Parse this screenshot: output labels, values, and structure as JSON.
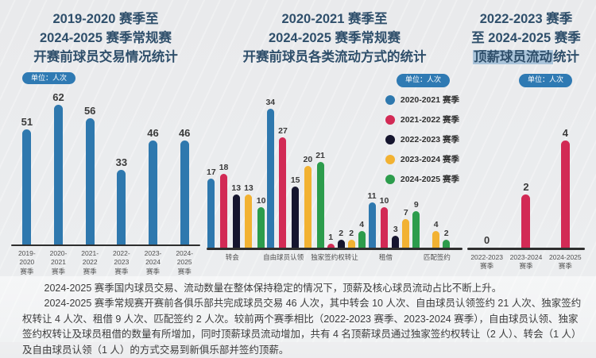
{
  "chart_data": [
    {
      "type": "bar",
      "title": "2019-2020 赛季至 2024-2025 赛季常规赛 开赛前球员交易情况统计",
      "title_lines": [
        "2019-2020 赛季至",
        "2024-2025 赛季常规赛",
        "开赛前球员交易情况统计"
      ],
      "unit": "单位：人次",
      "unit_align": "left",
      "categories": [
        "2019-2020 赛季",
        "2020-2021 赛季",
        "2021-2022 赛季",
        "2022-2023 赛季",
        "2023-2024 赛季",
        "2024-2025 赛季"
      ],
      "values": [
        51,
        62,
        56,
        33,
        46,
        46
      ],
      "bar_color": "#2e78ae",
      "ylim": [
        0,
        65
      ],
      "grid": false
    },
    {
      "type": "grouped-bar",
      "title": "2020-2021 赛季至 2024-2025 赛季常规赛 开赛前球员各类流动方式的统计",
      "title_lines": [
        "2020-2021 赛季至",
        "2024-2025 赛季常规赛",
        "开赛前球员各类流动方式的统计"
      ],
      "unit": "单位：人次",
      "unit_align": "right",
      "categories": [
        "转会",
        "自由球员认领",
        "独家签约权转让",
        "租借",
        "匹配签约"
      ],
      "series": [
        {
          "name": "2020-2021 赛季",
          "color": "#2e78ae",
          "values": [
            17,
            34,
            null,
            11,
            null
          ]
        },
        {
          "name": "2021-2022 赛季",
          "color": "#d22a55",
          "values": [
            18,
            27,
            1,
            10,
            null
          ]
        },
        {
          "name": "2022-2023 赛季",
          "color": "#15152e",
          "values": [
            13,
            15,
            2,
            3,
            null
          ]
        },
        {
          "name": "2023-2024 赛季",
          "color": "#f2b232",
          "values": [
            13,
            20,
            2,
            7,
            4
          ]
        },
        {
          "name": "2024-2025 赛季",
          "color": "#2c9c4c",
          "values": [
            10,
            21,
            4,
            9,
            2
          ]
        }
      ],
      "ylim": [
        0,
        36
      ],
      "legend_position": "right",
      "grid": false
    },
    {
      "type": "bar",
      "title": "2022-2023 赛季 至 2024-2025 赛季 顶薪球员流动统计",
      "title_lines": [
        "2022-2023 赛季",
        "至 2024-2025 赛季"
      ],
      "title_highlight": "顶薪球员流动",
      "title_highlight_tail": "统计",
      "unit": "单位：人次",
      "unit_align": "right",
      "categories": [
        "2022-2023 赛季",
        "2023-2024 赛季",
        "2024-2025 赛季"
      ],
      "values": [
        0,
        2,
        4
      ],
      "bar_color": "#d22a55",
      "ylim": [
        0,
        5.5
      ],
      "grid": false
    }
  ],
  "footnote": {
    "para1": "2024-2025 赛季国内球员交易、流动数量在整体保持稳定的情况下，顶薪及核心球员流动占比不断上升。",
    "para2": "2024-2025 赛季常规赛开赛前各俱乐部共完成球员交易 46 人次，其中转会 10 人次、自由球员认领签约 21 人次、独家签约权转让 4 人次、租借 9 人次、匹配签约 2 人次。较前两个赛季相比（2022-2023 赛季、2023-2024 赛季），自由球员认领、独家签约权转让及球员租借的数量有所增加，同时顶薪球员流动增加，共有 4 名顶薪球员通过独家签约权转让（2 人）、转会（1 人）及自由球员认领（1 人）的方式交易到新俱乐部并签约顶薪。"
  },
  "colors": {
    "title": "#2f4f6b",
    "badge_bg": "#2f7ab3",
    "badge_text": "#ffffff",
    "baseline": "#2e2e2e",
    "highlight_bg": "#a9c3d9"
  }
}
